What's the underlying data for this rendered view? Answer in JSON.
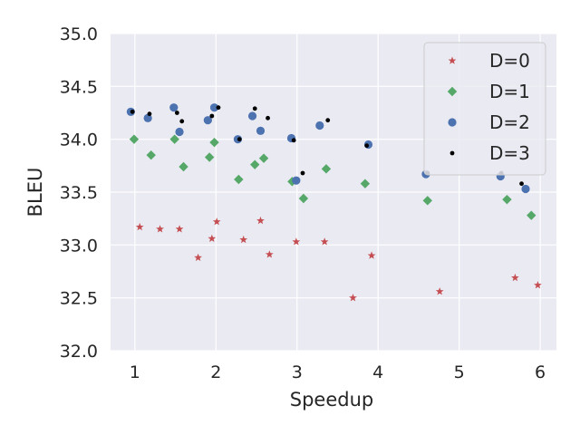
{
  "chart_data": {
    "type": "scatter",
    "xlabel": "Speedup",
    "ylabel": "BLEU",
    "xlim": [
      0.7,
      6.2
    ],
    "ylim": [
      32.0,
      35.0
    ],
    "xticks": [
      1,
      2,
      3,
      4,
      5,
      6
    ],
    "xtick_labels": [
      "1",
      "2",
      "3",
      "4",
      "5",
      "6"
    ],
    "yticks": [
      32.0,
      32.5,
      33.0,
      33.5,
      34.0,
      34.5,
      35.0
    ],
    "ytick_labels": [
      "32.0",
      "32.5",
      "33.0",
      "33.5",
      "34.0",
      "34.5",
      "35.0"
    ],
    "grid": true,
    "legend_position": "top-right",
    "background": "#eaeaf2",
    "series": [
      {
        "name": "D=0",
        "marker": "star",
        "color": "#c44e52",
        "points": [
          [
            1.06,
            33.17
          ],
          [
            1.31,
            33.15
          ],
          [
            1.55,
            33.15
          ],
          [
            1.78,
            32.88
          ],
          [
            1.95,
            33.06
          ],
          [
            2.01,
            33.22
          ],
          [
            2.34,
            33.05
          ],
          [
            2.55,
            33.23
          ],
          [
            2.66,
            32.91
          ],
          [
            2.99,
            33.03
          ],
          [
            3.34,
            33.03
          ],
          [
            3.69,
            32.5
          ],
          [
            3.92,
            32.9
          ],
          [
            4.76,
            32.56
          ],
          [
            5.69,
            32.69
          ],
          [
            5.97,
            32.62
          ]
        ]
      },
      {
        "name": "D=1",
        "marker": "diamond",
        "color": "#55a868",
        "points": [
          [
            0.99,
            34.0
          ],
          [
            1.2,
            33.85
          ],
          [
            1.49,
            34.0
          ],
          [
            1.6,
            33.74
          ],
          [
            1.92,
            33.83
          ],
          [
            1.98,
            33.97
          ],
          [
            2.28,
            33.62
          ],
          [
            2.48,
            33.76
          ],
          [
            2.59,
            33.82
          ],
          [
            2.94,
            33.6
          ],
          [
            3.08,
            33.44
          ],
          [
            3.36,
            33.72
          ],
          [
            3.84,
            33.58
          ],
          [
            4.61,
            33.42
          ],
          [
            5.59,
            33.43
          ],
          [
            5.89,
            33.28
          ]
        ]
      },
      {
        "name": "D=2",
        "marker": "circle",
        "color": "#4c72b0",
        "points": [
          [
            0.95,
            34.26
          ],
          [
            1.16,
            34.2
          ],
          [
            1.48,
            34.3
          ],
          [
            1.55,
            34.07
          ],
          [
            1.9,
            34.18
          ],
          [
            1.98,
            34.3
          ],
          [
            2.27,
            34.0
          ],
          [
            2.45,
            34.22
          ],
          [
            2.55,
            34.08
          ],
          [
            2.93,
            34.01
          ],
          [
            2.99,
            33.61
          ],
          [
            3.28,
            34.13
          ],
          [
            3.88,
            33.95
          ],
          [
            4.59,
            33.67
          ],
          [
            5.51,
            33.65
          ],
          [
            5.82,
            33.53
          ]
        ]
      },
      {
        "name": "D=3",
        "marker": "dot",
        "color": "#000000",
        "points": [
          [
            0.97,
            34.26
          ],
          [
            1.18,
            34.24
          ],
          [
            1.52,
            34.25
          ],
          [
            1.58,
            34.17
          ],
          [
            1.95,
            34.22
          ],
          [
            2.03,
            34.3
          ],
          [
            2.29,
            34.0
          ],
          [
            2.48,
            34.29
          ],
          [
            2.64,
            34.2
          ],
          [
            2.96,
            33.99
          ],
          [
            3.07,
            33.68
          ],
          [
            3.38,
            34.18
          ],
          [
            3.86,
            33.94
          ],
          [
            4.61,
            33.68
          ],
          [
            5.52,
            33.68
          ],
          [
            5.77,
            33.58
          ]
        ]
      }
    ]
  }
}
